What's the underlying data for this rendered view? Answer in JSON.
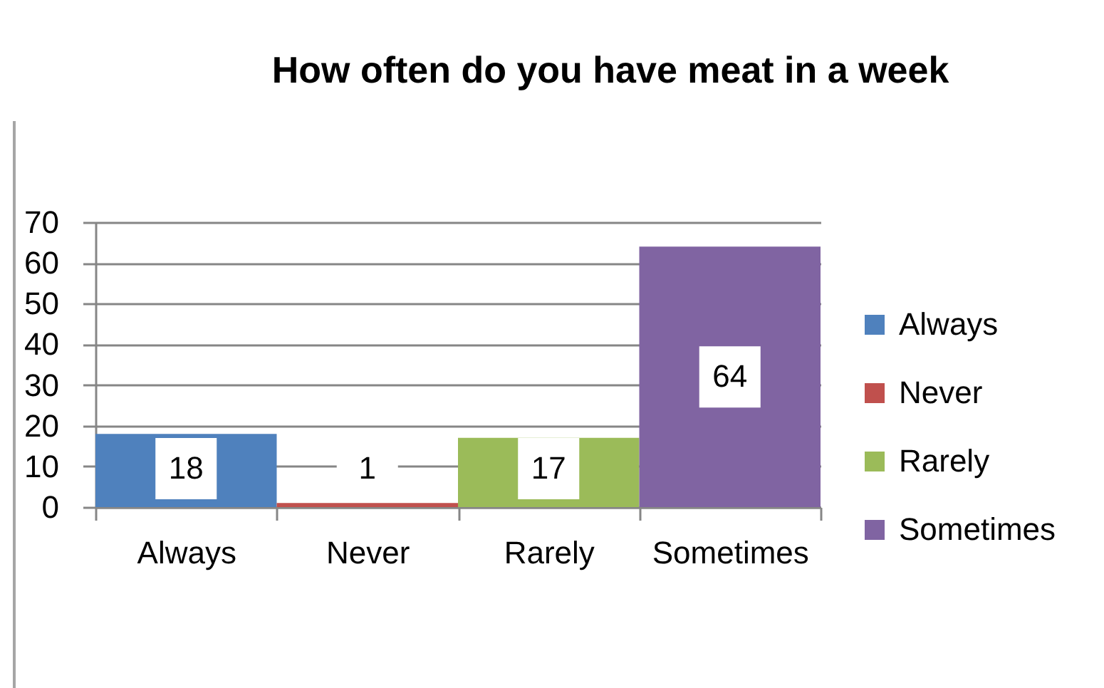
{
  "chart_data": {
    "type": "bar",
    "title": "How often do you have meat in a week",
    "categories": [
      "Always",
      "Never",
      "Rarely",
      "Sometimes"
    ],
    "series": [
      {
        "name": "Always",
        "color": "#4f81bd",
        "values": [
          18,
          null,
          null,
          null
        ]
      },
      {
        "name": "Never",
        "color": "#c0504d",
        "values": [
          null,
          1,
          null,
          null
        ]
      },
      {
        "name": "Rarely",
        "color": "#9bbb59",
        "values": [
          null,
          null,
          17,
          null
        ]
      },
      {
        "name": "Sometimes",
        "color": "#8064a2",
        "values": [
          null,
          null,
          null,
          64
        ]
      }
    ],
    "stacked": true,
    "ylim": [
      0,
      70
    ],
    "yticks": [
      0,
      10,
      20,
      30,
      40,
      50,
      60,
      70
    ],
    "grid": "y",
    "legend": "right",
    "data_labels": true
  }
}
